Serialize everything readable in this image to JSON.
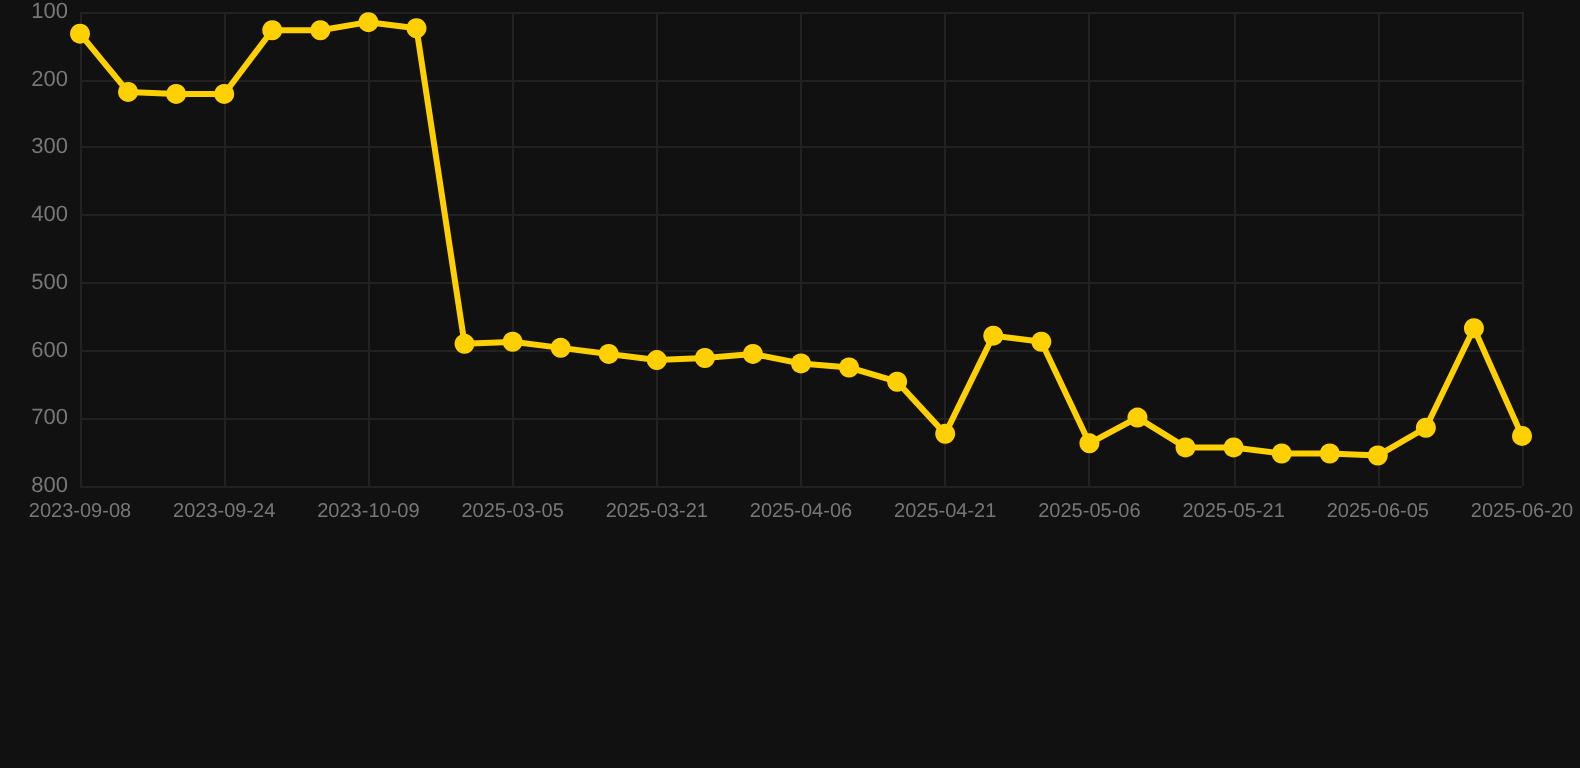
{
  "chart_data": {
    "type": "line",
    "categories": [
      "2023-09-08",
      null,
      null,
      "2023-09-24",
      null,
      null,
      "2023-10-09",
      null,
      null,
      "2025-03-05",
      null,
      null,
      "2025-03-21",
      null,
      null,
      "2025-04-06",
      null,
      null,
      "2025-04-21",
      null,
      null,
      "2025-05-06",
      null,
      null,
      "2025-05-21",
      null,
      null,
      "2025-06-05",
      null,
      null,
      "2025-06-20"
    ],
    "series": [
      {
        "color": "#ffd000",
        "values": [
          132,
          218,
          221,
          221,
          127,
          127,
          115,
          124,
          590,
          587,
          596,
          605,
          614,
          611,
          605,
          619,
          625,
          646,
          723,
          578,
          587,
          737,
          699,
          743,
          743,
          752,
          752,
          755,
          714,
          567,
          726
        ]
      }
    ],
    "ylim": [
      800,
      100
    ],
    "yticks": [
      100,
      200,
      300,
      400,
      500,
      600,
      700,
      800
    ],
    "grid": true,
    "marker": "circle",
    "line_style": "solid"
  }
}
